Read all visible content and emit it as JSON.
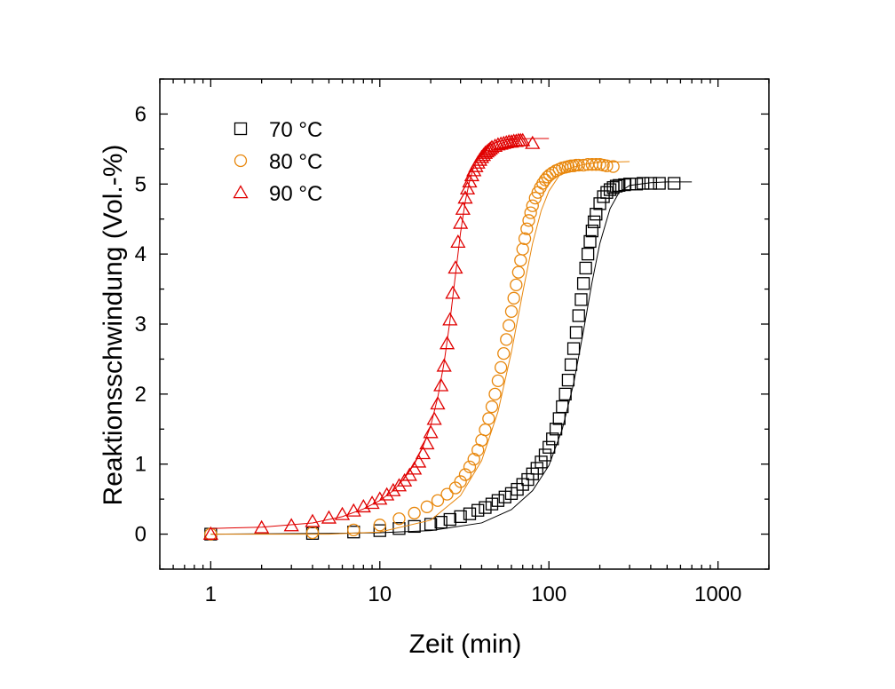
{
  "chart_data": {
    "type": "scatter",
    "title": "",
    "xlabel": "Zeit (min)",
    "ylabel": "Reaktionsschwindung (Vol.-%)",
    "xscale": "log",
    "xlim": [
      0.5,
      2000
    ],
    "ylim": [
      -0.5,
      6.5
    ],
    "x_ticks": [
      "1",
      "10",
      "100",
      "1000"
    ],
    "y_ticks": [
      "0",
      "1",
      "2",
      "3",
      "4",
      "5",
      "6"
    ],
    "grid": false,
    "legend_position": "top-left",
    "series": [
      {
        "name": "70 °C",
        "marker": "square",
        "color": "#000000",
        "x": [
          1,
          4,
          7,
          10,
          13,
          16,
          20,
          23,
          26,
          30,
          34,
          38,
          42,
          46,
          50,
          55,
          60,
          65,
          70,
          75,
          80,
          85,
          90,
          95,
          100,
          105,
          110,
          115,
          120,
          125,
          130,
          135,
          140,
          145,
          150,
          155,
          160,
          165,
          170,
          175,
          180,
          185,
          190,
          200,
          210,
          220,
          230,
          240,
          250,
          260,
          280,
          300,
          330,
          360,
          400,
          450,
          550
        ],
        "y": [
          0,
          0.01,
          0.03,
          0.05,
          0.08,
          0.11,
          0.14,
          0.17,
          0.21,
          0.25,
          0.29,
          0.34,
          0.38,
          0.43,
          0.48,
          0.53,
          0.58,
          0.64,
          0.71,
          0.78,
          0.86,
          0.94,
          1.03,
          1.13,
          1.24,
          1.36,
          1.5,
          1.65,
          1.82,
          2.0,
          2.2,
          2.42,
          2.65,
          2.88,
          3.12,
          3.35,
          3.58,
          3.8,
          4.0,
          4.18,
          4.33,
          4.46,
          4.57,
          4.72,
          4.82,
          4.88,
          4.92,
          4.95,
          4.97,
          4.98,
          4.99,
          5.0,
          5.0,
          5.01,
          5.01,
          5.01,
          5.01
        ],
        "fit_x": [
          1,
          5,
          10,
          20,
          40,
          60,
          80,
          100,
          120,
          140,
          160,
          180,
          200,
          230,
          260,
          300,
          400,
          500,
          700
        ],
        "fit_y": [
          0.0,
          0.01,
          0.02,
          0.05,
          0.16,
          0.35,
          0.62,
          0.98,
          1.5,
          2.15,
          2.9,
          3.6,
          4.15,
          4.65,
          4.88,
          4.98,
          5.02,
          5.03,
          5.03
        ]
      },
      {
        "name": "80 °C",
        "marker": "circle",
        "color": "#e8870c",
        "x": [
          1,
          4,
          7,
          10,
          13,
          16,
          19,
          22,
          25,
          28,
          30,
          32,
          34,
          36,
          38,
          40,
          42,
          44,
          46,
          48,
          50,
          52,
          54,
          56,
          58,
          60,
          62,
          64,
          66,
          68,
          70,
          72,
          74,
          76,
          78,
          80,
          83,
          86,
          89,
          92,
          95,
          98,
          101,
          105,
          110,
          115,
          120,
          125,
          130,
          135,
          140,
          145,
          150,
          160,
          170,
          180,
          190,
          200,
          210,
          220,
          240
        ],
        "y": [
          0,
          0.02,
          0.06,
          0.13,
          0.22,
          0.3,
          0.39,
          0.48,
          0.57,
          0.66,
          0.75,
          0.85,
          0.96,
          1.07,
          1.2,
          1.34,
          1.49,
          1.65,
          1.82,
          2.0,
          2.19,
          2.38,
          2.58,
          2.78,
          2.98,
          3.18,
          3.37,
          3.56,
          3.74,
          3.91,
          4.07,
          4.22,
          4.36,
          4.48,
          4.59,
          4.69,
          4.8,
          4.88,
          4.95,
          5.01,
          5.06,
          5.1,
          5.13,
          5.16,
          5.19,
          5.21,
          5.23,
          5.24,
          5.25,
          5.26,
          5.26,
          5.27,
          5.27,
          5.27,
          5.28,
          5.28,
          5.28,
          5.28,
          5.27,
          5.26,
          5.25
        ],
        "fit_x": [
          1,
          5,
          10,
          20,
          30,
          40,
          50,
          60,
          70,
          80,
          90,
          100,
          115,
          130,
          160,
          200,
          300
        ],
        "fit_y": [
          0.0,
          0.0,
          0.03,
          0.2,
          0.55,
          1.05,
          1.75,
          2.6,
          3.45,
          4.15,
          4.62,
          4.9,
          5.12,
          5.22,
          5.28,
          5.31,
          5.32
        ]
      },
      {
        "name": "90 °C",
        "marker": "triangle",
        "color": "#e00000",
        "x": [
          1,
          2,
          3,
          4,
          5,
          6,
          7,
          8,
          9,
          10,
          11,
          12,
          13,
          14,
          15,
          16,
          17,
          18,
          19,
          20,
          21,
          22,
          23,
          24,
          25,
          26,
          27,
          28,
          29,
          30,
          31,
          32,
          33,
          34,
          35,
          36,
          37,
          38,
          39,
          40,
          41,
          42,
          43,
          44,
          45,
          46,
          48,
          50,
          52,
          54,
          56,
          58,
          60,
          62,
          64,
          66,
          68,
          70,
          80
        ],
        "y": [
          0,
          0.09,
          0.12,
          0.18,
          0.23,
          0.28,
          0.33,
          0.39,
          0.44,
          0.5,
          0.56,
          0.62,
          0.69,
          0.76,
          0.84,
          0.93,
          1.03,
          1.15,
          1.29,
          1.45,
          1.64,
          1.86,
          2.12,
          2.4,
          2.72,
          3.06,
          3.44,
          3.8,
          4.17,
          4.44,
          4.64,
          4.8,
          4.93,
          5.03,
          5.12,
          5.19,
          5.25,
          5.3,
          5.34,
          5.38,
          5.41,
          5.44,
          5.46,
          5.48,
          5.5,
          5.52,
          5.54,
          5.56,
          5.57,
          5.58,
          5.59,
          5.6,
          5.6,
          5.61,
          5.61,
          5.62,
          5.62,
          5.62,
          5.58
        ],
        "fit_x": [
          1,
          2,
          4,
          6,
          8,
          10,
          12,
          14,
          16,
          18,
          20,
          22,
          24,
          26,
          28,
          30,
          32,
          34,
          36,
          40,
          45,
          50,
          60,
          80,
          100
        ],
        "fit_y": [
          0.08,
          0.1,
          0.16,
          0.25,
          0.36,
          0.48,
          0.62,
          0.8,
          1.0,
          1.25,
          1.55,
          1.95,
          2.45,
          3.05,
          3.7,
          4.3,
          4.75,
          5.05,
          5.25,
          5.45,
          5.56,
          5.61,
          5.64,
          5.65,
          5.65
        ]
      }
    ]
  }
}
